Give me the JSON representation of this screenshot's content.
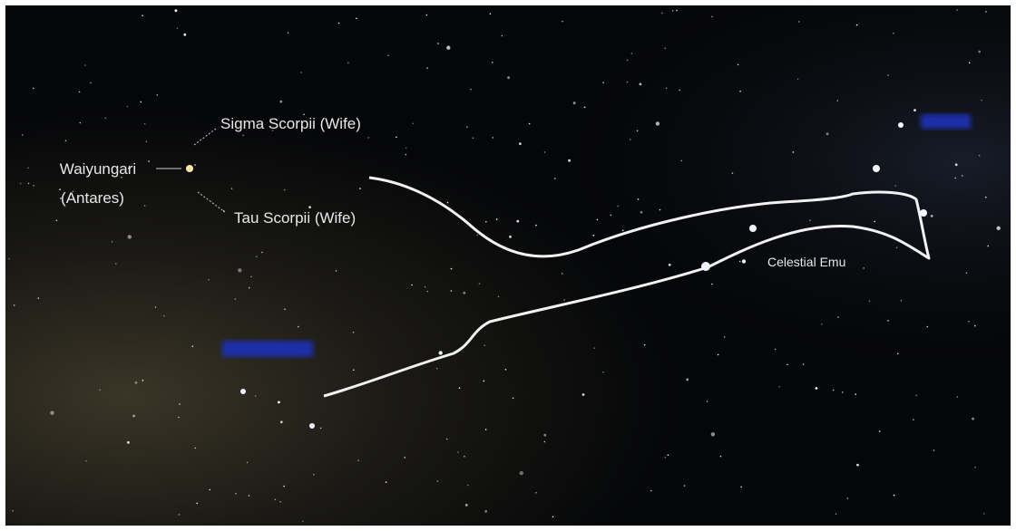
{
  "labels": {
    "sigma": "Sigma Scorpii (Wife)",
    "antares": [
      "Waiyungari",
      "(Antares)"
    ],
    "tau": "Tau Scorpii (Wife)",
    "emu": "Celestial Emu"
  }
}
